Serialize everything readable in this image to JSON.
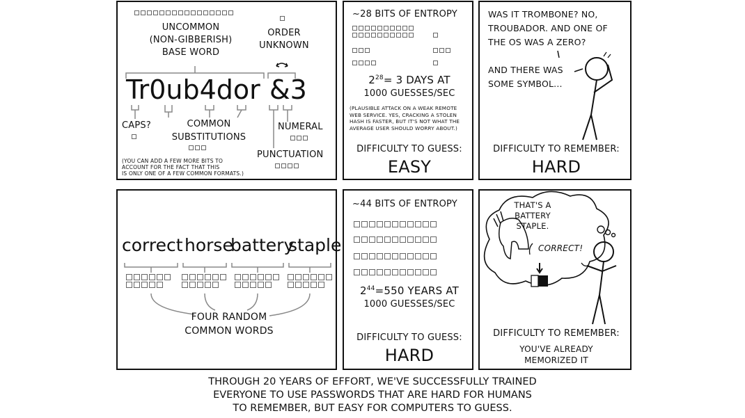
{
  "panel1": {
    "base_word_label": [
      "UNCOMMON",
      "(NON-GIBBERISH)",
      "BASE WORD"
    ],
    "order_label": [
      "ORDER",
      "UNKNOWN"
    ],
    "password_main": "Tr0ub4dor",
    "password_suffix": "&3",
    "caps_label": "CAPS?",
    "substitutions_label": [
      "COMMON",
      "SUBSTITUTIONS"
    ],
    "numeral_label": "NUMERAL",
    "punctuation_label": "PUNCTUATION",
    "footnote": [
      "(YOU CAN ADD A FEW MORE BITS TO",
      "ACCOUNT FOR THE FACT THAT THIS",
      "IS ONLY ONE OF A FEW COMMON FORMATS.)"
    ]
  },
  "panel2": {
    "entropy": "~28 BITS OF ENTROPY",
    "exponent": "28",
    "equation_rest": "= 3 DAYS AT",
    "rate": "1000 GUESSES/SEC",
    "note": [
      "(PLAUSIBLE ATTACK ON A WEAK REMOTE",
      "WEB SERVICE. YES, CRACKING A STOLEN",
      "HASH IS FASTER, BUT IT'S NOT WHAT THE",
      "AVERAGE USER SHOULD WORRY ABOUT.)"
    ],
    "difficulty_label": "DIFFICULTY TO GUESS:",
    "difficulty_value": "EASY"
  },
  "panel3": {
    "speech": [
      "WAS IT TROMBONE? NO,",
      "TROUBADOR. AND ONE OF",
      "THE Os WAS A ZERO?"
    ],
    "speech2": [
      "AND THERE WAS",
      "SOME SYMBOL..."
    ],
    "difficulty_label": "DIFFICULTY TO REMEMBER:",
    "difficulty_value": "HARD"
  },
  "panel4": {
    "words": [
      "correct",
      "horse",
      "battery",
      "staple"
    ],
    "label": [
      "FOUR RANDOM",
      "COMMON WORDS"
    ]
  },
  "panel5": {
    "entropy": "~44 BITS OF ENTROPY",
    "exponent": "44",
    "equation_rest": "=550 YEARS AT",
    "rate": "1000 GUESSES/SEC",
    "difficulty_label": "DIFFICULTY TO GUESS:",
    "difficulty_value": "HARD"
  },
  "panel6": {
    "thought": [
      "THAT'S A",
      "BATTERY",
      "STAPLE."
    ],
    "correct": "CORRECT!",
    "difficulty_label": "DIFFICULTY TO REMEMBER:",
    "difficulty_value": [
      "YOU'VE ALREADY",
      "MEMORIZED IT"
    ]
  },
  "caption": [
    "THROUGH 20 YEARS OF EFFORT, WE'VE SUCCESSFULLY TRAINED",
    "EVERYONE TO USE PASSWORDS THAT ARE HARD FOR HUMANS",
    "TO REMEMBER, BUT EASY FOR COMPUTERS TO GUESS."
  ]
}
